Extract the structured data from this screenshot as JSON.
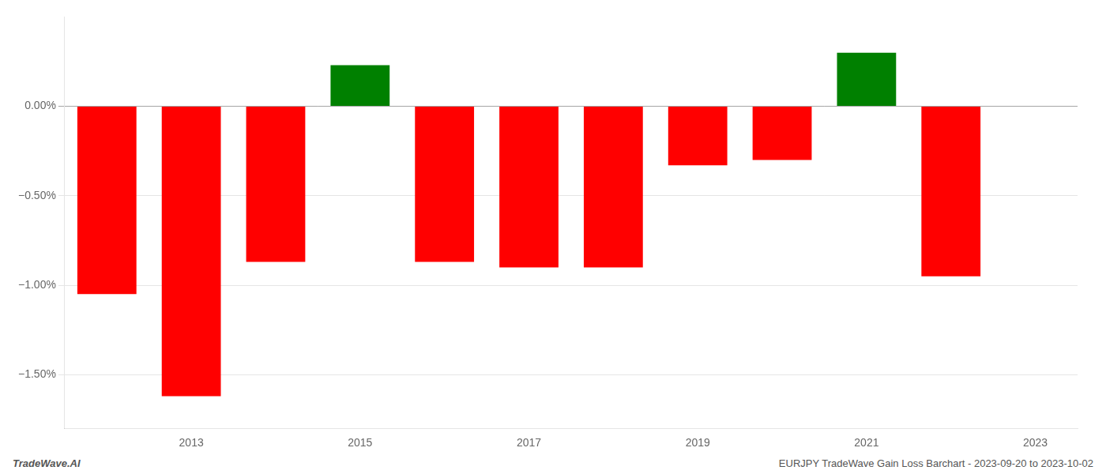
{
  "chart_data": {
    "type": "bar",
    "series": [
      {
        "color": "#ff0000",
        "x": [
          2012,
          2013,
          2014,
          2016,
          2017,
          2018,
          2019,
          2020,
          2022
        ],
        "values": [
          -1.05,
          -1.62,
          -0.87,
          -0.87,
          -0.9,
          -0.9,
          -0.33,
          -0.3,
          -0.95
        ]
      },
      {
        "color": "#008000",
        "x": [
          2015,
          2021
        ],
        "values": [
          0.23,
          0.3
        ]
      }
    ],
    "xlim": [
      2011.5,
      2023.5
    ],
    "xticks": [
      2013,
      2015,
      2017,
      2019,
      2021,
      2023
    ],
    "ylim": [
      -1.8,
      0.5
    ],
    "yticks": [
      {
        "value": 0.0,
        "label": "0.00%"
      },
      {
        "value": -0.5,
        "label": "−0.50%"
      },
      {
        "value": -1.0,
        "label": "−1.00%"
      },
      {
        "value": -1.5,
        "label": "−1.50%"
      }
    ],
    "grid": "y",
    "annotations": [
      "TradeWave.AI",
      "EURJPY TradeWave Gain Loss Barchart - 2023-09-20 to 2023-10-02"
    ]
  }
}
